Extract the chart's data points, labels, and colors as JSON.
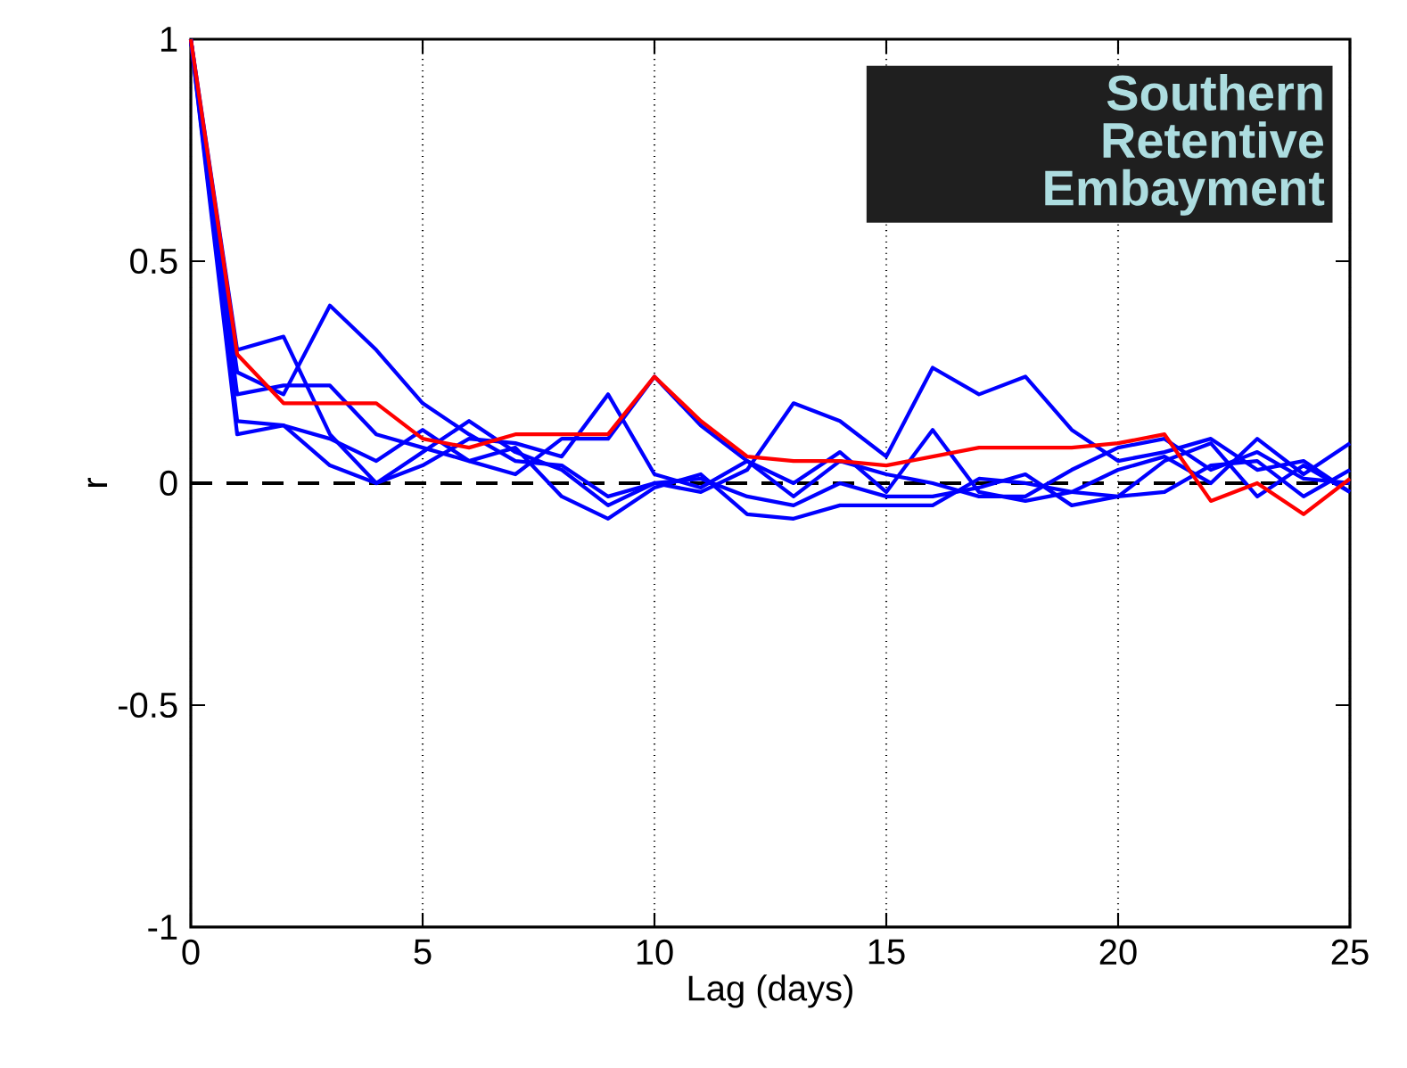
{
  "chart_data": {
    "type": "line",
    "xlabel": "Lag (days)",
    "ylabel": "r",
    "x": [
      0,
      1,
      2,
      3,
      4,
      5,
      6,
      7,
      8,
      9,
      10,
      11,
      12,
      13,
      14,
      15,
      16,
      17,
      18,
      19,
      20,
      21,
      22,
      23,
      24,
      25
    ],
    "xlim": [
      0,
      25
    ],
    "ylim": [
      -1,
      1
    ],
    "xticks": [
      0,
      5,
      10,
      15,
      20,
      25
    ],
    "yticks": [
      -1,
      -0.5,
      0,
      0.5,
      1
    ],
    "grid": "x",
    "marker": "none",
    "line_style": "solid",
    "annotations": [
      "Southern Retentive Embayment"
    ],
    "ref_lines": [
      {
        "axis": "y",
        "value": 0,
        "color": "#000000",
        "line_style": "dashed"
      }
    ],
    "series": [
      {
        "color": "#0000ff",
        "values": [
          1,
          0.25,
          0.2,
          0.4,
          0.3,
          0.18,
          0.11,
          0.05,
          0.04,
          -0.03,
          0.0,
          -0.02,
          0.03,
          0.18,
          0.14,
          0.06,
          0.26,
          0.2,
          0.24,
          0.12,
          0.05,
          0.07,
          0.1,
          0.03,
          0.05,
          -0.02
        ]
      },
      {
        "color": "#0000ff",
        "values": [
          1,
          0.3,
          0.33,
          0.11,
          0.0,
          0.04,
          0.1,
          0.09,
          0.06,
          0.2,
          0.02,
          -0.01,
          0.05,
          0.0,
          0.07,
          -0.02,
          0.12,
          -0.02,
          -0.04,
          -0.02,
          0.03,
          0.06,
          0.0,
          0.1,
          0.02,
          0.09
        ]
      },
      {
        "color": "#0000ff",
        "values": [
          1,
          0.11,
          0.13,
          0.04,
          0.0,
          0.07,
          0.14,
          0.07,
          0.03,
          -0.05,
          0.0,
          0.01,
          -0.03,
          -0.05,
          0.0,
          -0.03,
          -0.03,
          -0.01,
          0.02,
          -0.05,
          -0.03,
          0.05,
          0.09,
          -0.03,
          0.04,
          -0.02
        ]
      },
      {
        "color": "#0000ff",
        "values": [
          1,
          0.2,
          0.22,
          0.22,
          0.11,
          0.08,
          0.05,
          0.02,
          0.1,
          0.1,
          0.24,
          0.13,
          0.05,
          -0.03,
          0.05,
          0.02,
          0.0,
          -0.03,
          -0.03,
          0.03,
          0.08,
          0.1,
          0.03,
          0.07,
          0.01,
          0.0
        ]
      },
      {
        "color": "#0000ff",
        "values": [
          1,
          0.14,
          0.13,
          0.1,
          0.05,
          0.12,
          0.05,
          0.08,
          -0.03,
          -0.08,
          -0.01,
          0.02,
          -0.07,
          -0.08,
          -0.05,
          -0.05,
          -0.05,
          0.01,
          0.0,
          -0.02,
          -0.03,
          -0.02,
          0.04,
          0.05,
          -0.03,
          0.03
        ]
      },
      {
        "color": "#ff0000",
        "values": [
          1.0,
          0.29,
          0.18,
          0.18,
          0.18,
          0.1,
          0.08,
          0.11,
          0.11,
          0.11,
          0.24,
          0.14,
          0.06,
          0.05,
          0.05,
          0.04,
          0.06,
          0.08,
          0.08,
          0.08,
          0.09,
          0.11,
          -0.04,
          0.0,
          -0.07,
          0.01
        ]
      }
    ]
  }
}
